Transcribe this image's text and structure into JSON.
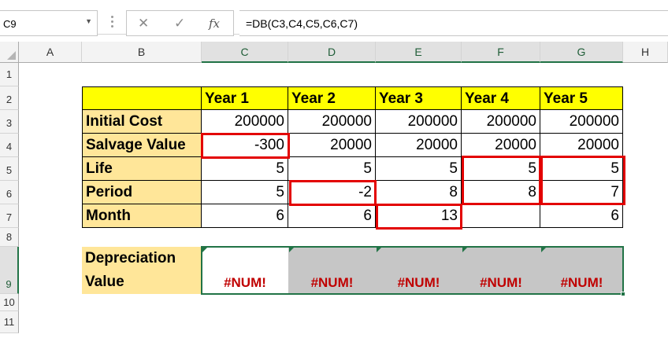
{
  "formula_bar": {
    "name_box": "C9",
    "name_box_dropdown_icon": "chevron-down-icon",
    "cancel_icon": "close-icon",
    "enter_icon": "check-icon",
    "fx_label": "fx",
    "formula": "=DB(C3,C4,C5,C6,C7)"
  },
  "columns": [
    "A",
    "B",
    "C",
    "D",
    "E",
    "F",
    "G",
    "H"
  ],
  "rows": [
    "1",
    "2",
    "3",
    "4",
    "5",
    "6",
    "7",
    "8",
    "9",
    "10",
    "11"
  ],
  "table": {
    "years": [
      "Year 1",
      "Year 2",
      "Year 3",
      "Year 4",
      "Year 5"
    ],
    "rows": [
      {
        "label": "Initial Cost",
        "values": [
          "200000",
          "200000",
          "200000",
          "200000",
          "200000"
        ]
      },
      {
        "label": "Salvage Value",
        "values": [
          "-300",
          "20000",
          "20000",
          "20000",
          "20000"
        ]
      },
      {
        "label": "Life",
        "values": [
          "5",
          "5",
          "5",
          "5",
          "5"
        ]
      },
      {
        "label": "Period",
        "values": [
          "5",
          "-2",
          "8",
          "8",
          "7"
        ]
      },
      {
        "label": "Month",
        "values": [
          "6",
          "6",
          "13",
          "",
          "6"
        ]
      }
    ]
  },
  "depreciation": {
    "label_line1": "Depreciation",
    "label_line2": "Value",
    "values": [
      "#NUM!",
      "#NUM!",
      "#NUM!",
      "#NUM!",
      "#NUM!"
    ]
  },
  "colors": {
    "header_fill": "#ffff00",
    "label_fill": "#ffe699",
    "error_text": "#c00000",
    "highlight_box": "#e30000",
    "selection": "#217346"
  }
}
